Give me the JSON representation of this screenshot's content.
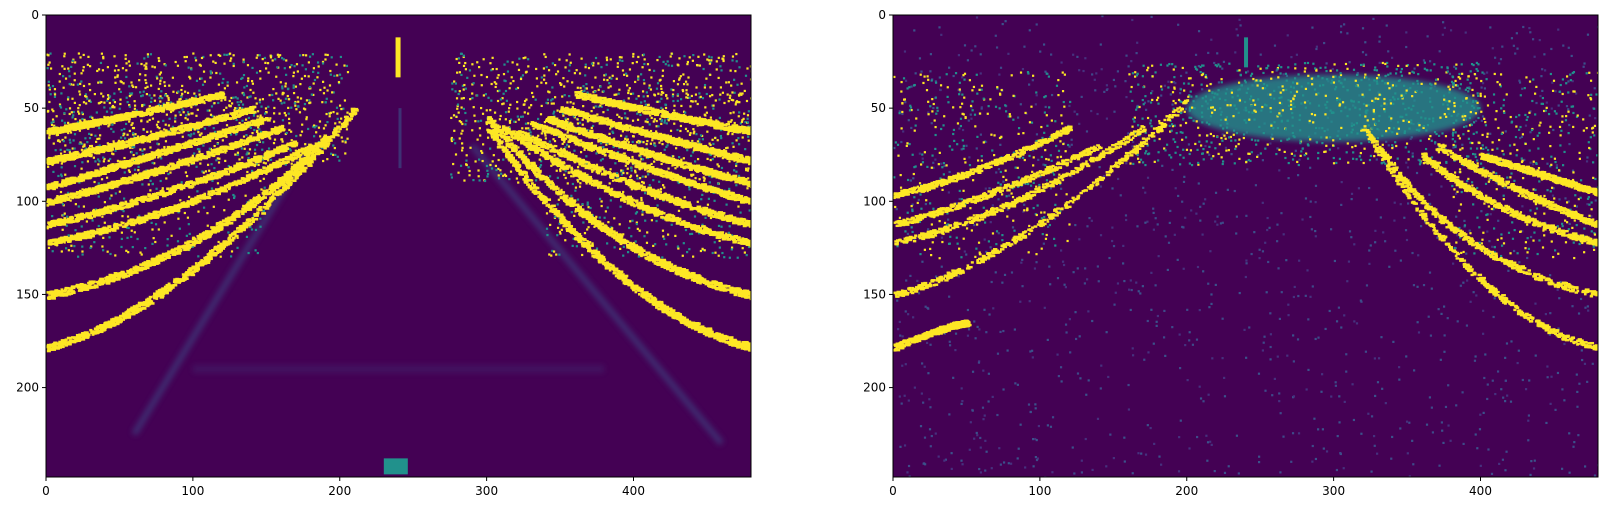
{
  "chart_data": [
    {
      "type": "heatmap",
      "title": "",
      "xlabel": "",
      "ylabel": "",
      "image_size": [
        480,
        248
      ],
      "xlim": [
        0,
        480
      ],
      "ylim": [
        248,
        0
      ],
      "xticks": [
        0,
        100,
        200,
        300,
        400
      ],
      "yticks": [
        0,
        50,
        100,
        150,
        200
      ],
      "colormap": "viridis",
      "content": "left",
      "colors": {
        "background": "#440154",
        "low": "#3b528b",
        "mid": "#21918c",
        "high": "#fde725"
      }
    },
    {
      "type": "heatmap",
      "title": "",
      "xlabel": "",
      "ylabel": "",
      "image_size": [
        480,
        248
      ],
      "xlim": [
        0,
        480
      ],
      "ylim": [
        248,
        0
      ],
      "xticks": [
        0,
        100,
        200,
        300,
        400
      ],
      "yticks": [
        0,
        50,
        100,
        150,
        200
      ],
      "colormap": "viridis",
      "content": "right",
      "colors": {
        "background": "#440154",
        "low": "#3b528b",
        "mid": "#21918c",
        "high": "#fde725"
      }
    }
  ]
}
